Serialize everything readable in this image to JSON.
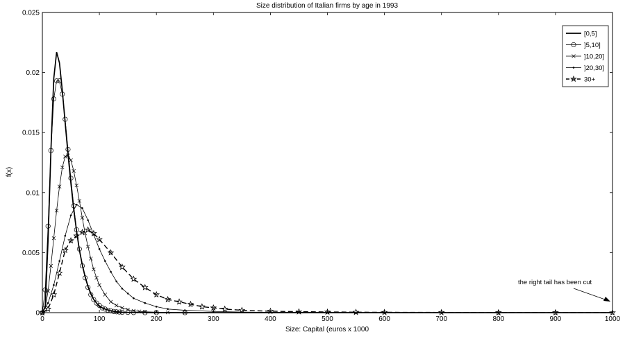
{
  "chart_data": {
    "type": "line",
    "title": "Size distribution of Italian firms by age in 1993",
    "xlabel": "Size: Capital (euros x 1000",
    "ylabel": "f(x)",
    "xlim": [
      0,
      1000
    ],
    "ylim": [
      0,
      0.025
    ],
    "x_ticks": [
      "0",
      "100",
      "200",
      "300",
      "400",
      "500",
      "600",
      "700",
      "800",
      "900",
      "1000"
    ],
    "y_ticks": [
      "0",
      "0.005",
      "0.01",
      "0.015",
      "0.02",
      "0.025"
    ],
    "grid": false,
    "legend_position": "top-right",
    "annotation": "the right tail has been cut",
    "series": [
      {
        "name": "[0,5]",
        "marker": "none",
        "line": "solid-thick",
        "x": [
          0,
          5,
          10,
          15,
          20,
          25,
          30,
          35,
          40,
          45,
          50,
          55,
          60,
          65,
          70,
          75,
          80,
          85,
          90,
          95,
          100,
          110,
          120,
          130,
          140,
          150,
          170,
          200,
          250,
          300,
          400,
          500,
          600,
          700,
          800,
          900,
          1000
        ],
        "y": [
          0,
          0.0005,
          0.006,
          0.0135,
          0.0195,
          0.0217,
          0.0208,
          0.0185,
          0.0158,
          0.0132,
          0.0108,
          0.0086,
          0.0068,
          0.0052,
          0.004,
          0.003,
          0.0022,
          0.0016,
          0.0011,
          0.0008,
          0.0005,
          0.0003,
          0.00015,
          8e-05,
          4e-05,
          2e-05,
          1e-05,
          0,
          0,
          0,
          0,
          0,
          0,
          0,
          0,
          0,
          0
        ]
      },
      {
        "name": "]5,10]",
        "marker": "circle",
        "line": "solid",
        "x": [
          0,
          5,
          10,
          15,
          20,
          25,
          30,
          35,
          40,
          45,
          50,
          55,
          60,
          65,
          70,
          75,
          80,
          85,
          90,
          95,
          100,
          105,
          110,
          115,
          120,
          125,
          130,
          135,
          140,
          150,
          160,
          180,
          200,
          250
        ],
        "y": [
          0,
          0.0019,
          0.0072,
          0.0135,
          0.0178,
          0.0193,
          0.0193,
          0.0182,
          0.0161,
          0.0136,
          0.0112,
          0.0089,
          0.0069,
          0.0053,
          0.0039,
          0.0029,
          0.0021,
          0.0015,
          0.0011,
          0.0008,
          0.0006,
          0.0004,
          0.0003,
          0.0002,
          0.00015,
          0.0001,
          7e-05,
          5e-05,
          3e-05,
          2e-05,
          1e-05,
          0,
          0,
          0
        ]
      },
      {
        "name": "]10,20]",
        "marker": "x",
        "line": "solid",
        "x": [
          0,
          5,
          10,
          15,
          20,
          25,
          30,
          35,
          40,
          45,
          50,
          55,
          60,
          65,
          70,
          75,
          80,
          85,
          90,
          95,
          100,
          110,
          120,
          130,
          140,
          150,
          160,
          170,
          180,
          200,
          220,
          250
        ],
        "y": [
          0,
          0.0004,
          0.0018,
          0.0039,
          0.0062,
          0.0085,
          0.0105,
          0.0121,
          0.013,
          0.0131,
          0.0127,
          0.0118,
          0.0106,
          0.0093,
          0.0079,
          0.0066,
          0.0055,
          0.0045,
          0.0036,
          0.0029,
          0.0023,
          0.0015,
          0.0009,
          0.0006,
          0.0004,
          0.00025,
          0.00015,
          0.0001,
          7e-05,
          4e-05,
          2e-05,
          0
        ]
      },
      {
        "name": "]20,30]",
        "marker": "dot",
        "line": "solid",
        "x": [
          0,
          10,
          20,
          30,
          40,
          50,
          60,
          70,
          80,
          90,
          100,
          110,
          120,
          130,
          140,
          150,
          160,
          180,
          200,
          220,
          250,
          300,
          350,
          400,
          500,
          600,
          800,
          1000
        ],
        "y": [
          0,
          0.0008,
          0.0023,
          0.0043,
          0.0064,
          0.0081,
          0.009,
          0.0087,
          0.0077,
          0.0065,
          0.0053,
          0.0043,
          0.0034,
          0.0026,
          0.002,
          0.0016,
          0.0012,
          0.0008,
          0.0005,
          0.0003,
          0.0002,
          0.0001,
          5e-05,
          3e-05,
          1e-05,
          0,
          0,
          0
        ]
      },
      {
        "name": "30+",
        "marker": "star",
        "line": "dashed",
        "x": [
          0,
          10,
          20,
          30,
          40,
          50,
          60,
          70,
          80,
          90,
          100,
          120,
          140,
          160,
          180,
          200,
          220,
          240,
          260,
          280,
          300,
          320,
          350,
          400,
          450,
          500,
          550,
          600,
          700,
          800,
          900,
          1000
        ],
        "y": [
          0,
          0.0003,
          0.0015,
          0.0033,
          0.0052,
          0.006,
          0.0064,
          0.0067,
          0.0069,
          0.0066,
          0.0061,
          0.005,
          0.0038,
          0.0028,
          0.0021,
          0.0015,
          0.0011,
          0.0009,
          0.0007,
          0.0005,
          0.0004,
          0.0003,
          0.0002,
          0.00012,
          8e-05,
          6e-05,
          4e-05,
          3e-05,
          2e-05,
          1e-05,
          1e-05,
          0
        ]
      }
    ]
  }
}
